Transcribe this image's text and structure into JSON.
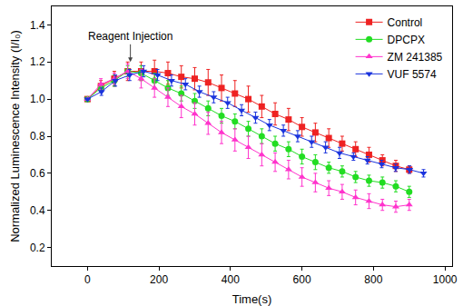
{
  "chart_data": {
    "type": "line",
    "x_label": "Time(s)",
    "y_label": "Normalized Luminescence Intensity (I/I₀)",
    "xlim": [
      -100,
      1020
    ],
    "xticks": [
      0,
      200,
      400,
      600,
      800,
      1000
    ],
    "ylim": [
      0.1,
      1.5
    ],
    "yticks": [
      0.2,
      0.4,
      0.6,
      0.8,
      1.0,
      1.2,
      1.4
    ],
    "grid": false,
    "legend": "top right",
    "annotations": [
      {
        "text": "Reagent Injection",
        "x": 120,
        "y": 1.2
      }
    ],
    "series": [
      {
        "name": "Control",
        "color": "#ee2222",
        "marker": "square",
        "x": [
          0,
          37.5,
          75,
          112.5,
          150,
          187.5,
          225,
          262.5,
          300,
          337.5,
          375,
          412.5,
          450,
          487.5,
          525,
          562.5,
          600,
          637.5,
          675,
          712.5,
          750,
          787.5,
          825,
          862.5,
          900
        ],
        "values": [
          1.0,
          1.07,
          1.11,
          1.15,
          1.15,
          1.15,
          1.14,
          1.12,
          1.11,
          1.09,
          1.06,
          1.03,
          1.0,
          0.96,
          0.92,
          0.89,
          0.85,
          0.82,
          0.79,
          0.76,
          0.73,
          0.7,
          0.67,
          0.64,
          0.62
        ],
        "errors": [
          0,
          0.03,
          0.04,
          0.05,
          0.05,
          0.06,
          0.06,
          0.06,
          0.06,
          0.07,
          0.07,
          0.07,
          0.07,
          0.06,
          0.06,
          0.06,
          0.05,
          0.05,
          0.05,
          0.04,
          0.04,
          0.04,
          0.03,
          0.03,
          0.02
        ]
      },
      {
        "name": "DPCPX",
        "color": "#22dd22",
        "marker": "circle",
        "x": [
          0,
          37.5,
          75,
          112.5,
          150,
          187.5,
          225,
          262.5,
          300,
          337.5,
          375,
          412.5,
          450,
          487.5,
          525,
          562.5,
          600,
          637.5,
          675,
          712.5,
          750,
          787.5,
          825,
          862.5,
          900
        ],
        "values": [
          1.0,
          1.06,
          1.1,
          1.15,
          1.14,
          1.1,
          1.06,
          1.03,
          0.99,
          0.95,
          0.91,
          0.88,
          0.84,
          0.8,
          0.76,
          0.73,
          0.69,
          0.66,
          0.63,
          0.61,
          0.58,
          0.56,
          0.55,
          0.53,
          0.5
        ],
        "errors": [
          0,
          0.02,
          0.03,
          0.03,
          0.04,
          0.04,
          0.04,
          0.04,
          0.04,
          0.04,
          0.04,
          0.04,
          0.04,
          0.04,
          0.04,
          0.04,
          0.04,
          0.04,
          0.03,
          0.03,
          0.03,
          0.03,
          0.03,
          0.03,
          0.03
        ]
      },
      {
        "name": "ZM 241385",
        "color": "#ff33cc",
        "marker": "triangle-up",
        "x": [
          0,
          37.5,
          75,
          112.5,
          150,
          187.5,
          225,
          262.5,
          300,
          337.5,
          375,
          412.5,
          450,
          487.5,
          525,
          562.5,
          600,
          637.5,
          675,
          712.5,
          750,
          787.5,
          825,
          862.5,
          900
        ],
        "values": [
          1.0,
          1.08,
          1.11,
          1.15,
          1.11,
          1.06,
          1.01,
          0.96,
          0.92,
          0.87,
          0.82,
          0.78,
          0.74,
          0.7,
          0.66,
          0.62,
          0.58,
          0.55,
          0.52,
          0.5,
          0.47,
          0.45,
          0.43,
          0.42,
          0.43
        ],
        "errors": [
          0,
          0.03,
          0.03,
          0.04,
          0.05,
          0.05,
          0.05,
          0.06,
          0.06,
          0.06,
          0.06,
          0.06,
          0.06,
          0.06,
          0.05,
          0.05,
          0.05,
          0.05,
          0.04,
          0.04,
          0.04,
          0.04,
          0.03,
          0.03,
          0.03
        ]
      },
      {
        "name": "VUF 5574",
        "color": "#1a33dd",
        "marker": "triangle-down",
        "x": [
          0,
          39,
          78,
          118,
          157,
          196,
          235,
          274,
          313,
          353,
          392,
          431,
          470,
          509,
          548,
          588,
          627,
          666,
          705,
          744,
          783,
          823,
          862,
          901,
          940
        ],
        "values": [
          1.0,
          1.04,
          1.1,
          1.13,
          1.15,
          1.13,
          1.1,
          1.08,
          1.04,
          1.01,
          0.98,
          0.94,
          0.9,
          0.86,
          0.83,
          0.8,
          0.77,
          0.74,
          0.71,
          0.69,
          0.67,
          0.65,
          0.63,
          0.62,
          0.6
        ],
        "errors": [
          0,
          0.02,
          0.03,
          0.03,
          0.03,
          0.03,
          0.03,
          0.03,
          0.03,
          0.03,
          0.03,
          0.03,
          0.03,
          0.03,
          0.03,
          0.03,
          0.03,
          0.03,
          0.03,
          0.02,
          0.02,
          0.02,
          0.02,
          0.02,
          0.02
        ]
      }
    ]
  }
}
